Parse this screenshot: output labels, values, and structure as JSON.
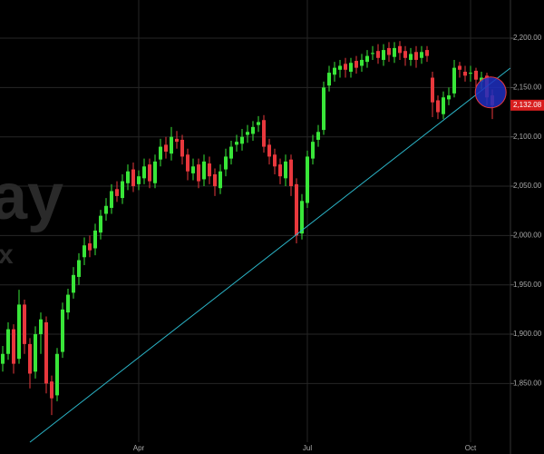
{
  "chart_data": {
    "type": "candlestick",
    "watermark": [
      "ay",
      "x"
    ],
    "categories": [
      null,
      null,
      null,
      null,
      null,
      null,
      null,
      null,
      null,
      null,
      null,
      null,
      null,
      null,
      null,
      null,
      null,
      null,
      null,
      null,
      null,
      null,
      null,
      null,
      null,
      "Apr",
      null,
      null,
      null,
      null,
      null,
      null,
      null,
      null,
      null,
      null,
      null,
      null,
      null,
      null,
      null,
      null,
      null,
      null,
      null,
      null,
      null,
      null,
      null,
      null,
      null,
      null,
      null,
      null,
      null,
      null,
      "Jul",
      null,
      null,
      null,
      null,
      null,
      null,
      null,
      null,
      null,
      null,
      null,
      null,
      null,
      null,
      null,
      null,
      null,
      null,
      null,
      null,
      null,
      null,
      null,
      null,
      null,
      null,
      null,
      null,
      null,
      "Oct",
      null,
      null,
      null,
      null
    ],
    "open": [
      1870,
      1880,
      1905,
      1875,
      1930,
      1890,
      1862,
      1900,
      1912,
      1852,
      1838,
      1882,
      1922,
      1942,
      1958,
      1978,
      1992,
      1987,
      2003,
      2022,
      2028,
      2047,
      2038,
      2053,
      2067,
      2052,
      2058,
      2072,
      2053,
      2077,
      2092,
      2083,
      2098,
      2097,
      2082,
      2063,
      2072,
      2057,
      2073,
      2062,
      2048,
      2067,
      2078,
      2092,
      2093,
      2102,
      2103,
      2112,
      2117,
      2092,
      2082,
      2072,
      2058,
      2077,
      2052,
      2002,
      2033,
      2078,
      2097,
      2107,
      2152,
      2163,
      2168,
      2174,
      2166,
      2177,
      2172,
      2176,
      2184,
      2187,
      2178,
      2190,
      2181,
      2192,
      2187,
      2178,
      2186,
      2180,
      2188,
      2160,
      2137,
      2123,
      2138,
      2144,
      2172,
      2166,
      2164,
      2167,
      2156,
      2162,
      2142
    ],
    "high": [
      1888,
      1912,
      1910,
      1945,
      1935,
      1896,
      1908,
      1922,
      1918,
      1858,
      1886,
      1932,
      1946,
      1968,
      1982,
      1998,
      2000,
      2012,
      2026,
      2038,
      2052,
      2055,
      2062,
      2072,
      2074,
      2066,
      2078,
      2078,
      2082,
      2098,
      2100,
      2110,
      2106,
      2102,
      2088,
      2078,
      2078,
      2082,
      2080,
      2068,
      2072,
      2088,
      2096,
      2102,
      2108,
      2112,
      2116,
      2121,
      2122,
      2098,
      2088,
      2078,
      2082,
      2082,
      2058,
      2042,
      2086,
      2102,
      2112,
      2156,
      2172,
      2176,
      2178,
      2180,
      2180,
      2182,
      2184,
      2188,
      2192,
      2194,
      2194,
      2196,
      2196,
      2197,
      2192,
      2190,
      2192,
      2192,
      2192,
      2166,
      2142,
      2146,
      2150,
      2178,
      2176,
      2172,
      2172,
      2170,
      2166,
      2165,
      2148
    ],
    "low": [
      1862,
      1874,
      1860,
      1870,
      1880,
      1845,
      1855,
      1880,
      1840,
      1818,
      1832,
      1876,
      1915,
      1936,
      1950,
      1970,
      1978,
      1980,
      1996,
      2015,
      2022,
      2034,
      2032,
      2046,
      2044,
      2046,
      2052,
      2048,
      2048,
      2070,
      2078,
      2076,
      2088,
      2072,
      2056,
      2056,
      2048,
      2050,
      2052,
      2040,
      2042,
      2060,
      2072,
      2085,
      2086,
      2094,
      2096,
      2105,
      2084,
      2072,
      2062,
      2052,
      2050,
      2040,
      1992,
      1996,
      2028,
      2072,
      2090,
      2102,
      2146,
      2156,
      2160,
      2160,
      2160,
      2164,
      2166,
      2170,
      2178,
      2174,
      2172,
      2176,
      2175,
      2178,
      2172,
      2172,
      2170,
      2174,
      2176,
      2120,
      2118,
      2118,
      2132,
      2140,
      2160,
      2156,
      2156,
      2150,
      2148,
      2132,
      2118
    ],
    "close": [
      1880,
      1905,
      1870,
      1930,
      1890,
      1860,
      1900,
      1915,
      1850,
      1835,
      1880,
      1925,
      1940,
      1960,
      1975,
      1990,
      1985,
      2005,
      2020,
      2030,
      2045,
      2040,
      2055,
      2065,
      2050,
      2060,
      2070,
      2055,
      2075,
      2090,
      2085,
      2100,
      2095,
      2080,
      2065,
      2070,
      2055,
      2075,
      2060,
      2050,
      2065,
      2080,
      2090,
      2095,
      2100,
      2105,
      2110,
      2115,
      2090,
      2080,
      2070,
      2060,
      2075,
      2050,
      2000,
      2035,
      2080,
      2095,
      2105,
      2150,
      2165,
      2170,
      2172,
      2168,
      2175,
      2170,
      2178,
      2182,
      2185,
      2180,
      2188,
      2183,
      2190,
      2185,
      2180,
      2184,
      2178,
      2186,
      2182,
      2135,
      2125,
      2140,
      2142,
      2170,
      2168,
      2162,
      2165,
      2158,
      2160,
      2140,
      2132.08
    ],
    "last_label": "2,132.08",
    "up_color": "#39e639",
    "down_color": "#e8383d",
    "ylim": [
      1790.5,
      2238.7
    ],
    "yticks": [
      {
        "value": 1850,
        "label": "1,850.00"
      },
      {
        "value": 1900,
        "label": "1,900.00"
      },
      {
        "value": 1950,
        "label": "1,950.00"
      },
      {
        "value": 2000,
        "label": "2,000.00"
      },
      {
        "value": 2050,
        "label": "2,050.00"
      },
      {
        "value": 2100,
        "label": "2,100.00"
      },
      {
        "value": 2150,
        "label": "2,150.00"
      },
      {
        "value": 2200,
        "label": "2,200.00"
      }
    ],
    "grid": true,
    "trendline": {
      "x": [
        5,
        93.3
      ],
      "values": [
        1790.5,
        2169.7
      ],
      "color": "#2bb5c8"
    },
    "marker": {
      "x": 89.7,
      "value": 2145,
      "color": "#1f2fbf"
    }
  }
}
